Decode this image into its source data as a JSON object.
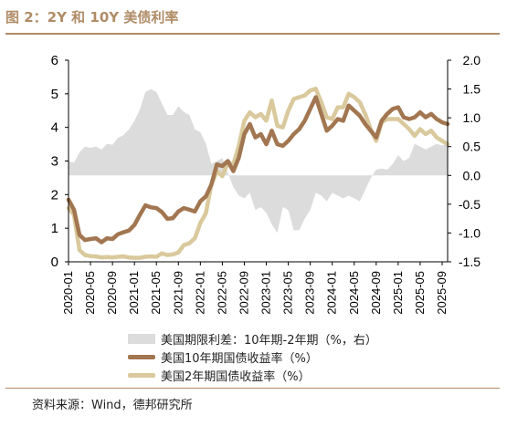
{
  "header": {
    "title": "图 2：2Y 和 10Y 美债利率"
  },
  "footer": {
    "source": "资料来源：Wind，德邦研究所"
  },
  "colors": {
    "accent": "#b08c67",
    "spread": "#dcdcdc",
    "y10": "#a27650",
    "y2": "#d9c99c"
  },
  "chart_data": {
    "type": "line",
    "title": "",
    "x_ticks": [
      "2020-01",
      "2020-05",
      "2020-09",
      "2021-01",
      "2021-05",
      "2021-09",
      "2022-01",
      "2022-05",
      "2022-09",
      "2023-01",
      "2023-05",
      "2023-09",
      "2024-01",
      "2024-05",
      "2024-09",
      "2025-01",
      "2025-05",
      "2025-09"
    ],
    "y_left": {
      "range": [
        0,
        6
      ],
      "ticks": [
        "0",
        "1",
        "2",
        "3",
        "4",
        "5",
        "6"
      ]
    },
    "y_right": {
      "range": [
        -1.5,
        2.0
      ],
      "ticks": [
        "-1.5",
        "-1.0",
        "-0.5",
        "0.0",
        "0.5",
        "1.0",
        "1.5",
        "2.0"
      ]
    },
    "legend_position": "bottom",
    "series": [
      {
        "name": "美国期限利差：10年期-2年期（%，右）",
        "kind": "area",
        "axis": "right",
        "points": [
          [
            "2020-01",
            0.25
          ],
          [
            "2020-02",
            0.22
          ],
          [
            "2020-03",
            0.4
          ],
          [
            "2020-04",
            0.5
          ],
          [
            "2020-05",
            0.48
          ],
          [
            "2020-06",
            0.5
          ],
          [
            "2020-07",
            0.45
          ],
          [
            "2020-08",
            0.55
          ],
          [
            "2020-09",
            0.53
          ],
          [
            "2020-10",
            0.65
          ],
          [
            "2020-11",
            0.7
          ],
          [
            "2020-12",
            0.8
          ],
          [
            "2021-01",
            0.95
          ],
          [
            "2021-02",
            1.15
          ],
          [
            "2021-03",
            1.45
          ],
          [
            "2021-04",
            1.5
          ],
          [
            "2021-05",
            1.45
          ],
          [
            "2021-06",
            1.25
          ],
          [
            "2021-07",
            1.05
          ],
          [
            "2021-08",
            1.05
          ],
          [
            "2021-09",
            1.2
          ],
          [
            "2021-10",
            1.1
          ],
          [
            "2021-11",
            1.05
          ],
          [
            "2021-12",
            0.8
          ],
          [
            "2022-01",
            0.75
          ],
          [
            "2022-02",
            0.55
          ],
          [
            "2022-03",
            0.2
          ],
          [
            "2022-04",
            0.25
          ],
          [
            "2022-05",
            0.3
          ],
          [
            "2022-06",
            0.05
          ],
          [
            "2022-07",
            -0.2
          ],
          [
            "2022-08",
            -0.35
          ],
          [
            "2022-09",
            -0.4
          ],
          [
            "2022-10",
            -0.3
          ],
          [
            "2022-11",
            -0.6
          ],
          [
            "2022-12",
            -0.55
          ],
          [
            "2023-01",
            -0.65
          ],
          [
            "2023-02",
            -0.85
          ],
          [
            "2023-03",
            -1.0
          ],
          [
            "2023-04",
            -0.55
          ],
          [
            "2023-05",
            -0.6
          ],
          [
            "2023-06",
            -0.95
          ],
          [
            "2023-07",
            -0.95
          ],
          [
            "2023-08",
            -0.75
          ],
          [
            "2023-09",
            -0.6
          ],
          [
            "2023-10",
            -0.3
          ],
          [
            "2023-11",
            -0.35
          ],
          [
            "2023-12",
            -0.45
          ],
          [
            "2024-01",
            -0.3
          ],
          [
            "2024-02",
            -0.35
          ],
          [
            "2024-03",
            -0.4
          ],
          [
            "2024-04",
            -0.35
          ],
          [
            "2024-05",
            -0.4
          ],
          [
            "2024-06",
            -0.45
          ],
          [
            "2024-07",
            -0.25
          ],
          [
            "2024-08",
            -0.05
          ],
          [
            "2024-09",
            0.1
          ],
          [
            "2024-10",
            0.12
          ],
          [
            "2024-11",
            0.1
          ],
          [
            "2024-12",
            0.2
          ],
          [
            "2025-01",
            0.35
          ],
          [
            "2025-02",
            0.25
          ],
          [
            "2025-03",
            0.3
          ],
          [
            "2025-04",
            0.55
          ],
          [
            "2025-05",
            0.5
          ],
          [
            "2025-06",
            0.45
          ],
          [
            "2025-07",
            0.5
          ],
          [
            "2025-08",
            0.55
          ],
          [
            "2025-09",
            0.52
          ],
          [
            "2025-10",
            0.55
          ]
        ]
      },
      {
        "name": "美国10年期国债收益率（%）",
        "kind": "line",
        "axis": "left",
        "points": [
          [
            "2020-01",
            1.85
          ],
          [
            "2020-02",
            1.55
          ],
          [
            "2020-03",
            0.8
          ],
          [
            "2020-04",
            0.65
          ],
          [
            "2020-05",
            0.68
          ],
          [
            "2020-06",
            0.7
          ],
          [
            "2020-07",
            0.58
          ],
          [
            "2020-08",
            0.7
          ],
          [
            "2020-09",
            0.68
          ],
          [
            "2020-10",
            0.82
          ],
          [
            "2020-11",
            0.88
          ],
          [
            "2020-12",
            0.93
          ],
          [
            "2021-01",
            1.1
          ],
          [
            "2021-02",
            1.4
          ],
          [
            "2021-03",
            1.68
          ],
          [
            "2021-04",
            1.62
          ],
          [
            "2021-05",
            1.6
          ],
          [
            "2021-06",
            1.48
          ],
          [
            "2021-07",
            1.28
          ],
          [
            "2021-08",
            1.3
          ],
          [
            "2021-09",
            1.5
          ],
          [
            "2021-10",
            1.6
          ],
          [
            "2021-11",
            1.55
          ],
          [
            "2021-12",
            1.5
          ],
          [
            "2022-01",
            1.8
          ],
          [
            "2022-02",
            1.95
          ],
          [
            "2022-03",
            2.3
          ],
          [
            "2022-04",
            2.9
          ],
          [
            "2022-05",
            2.85
          ],
          [
            "2022-06",
            3.0
          ],
          [
            "2022-07",
            2.7
          ],
          [
            "2022-08",
            3.1
          ],
          [
            "2022-09",
            3.8
          ],
          [
            "2022-10",
            4.1
          ],
          [
            "2022-11",
            3.7
          ],
          [
            "2022-12",
            3.8
          ],
          [
            "2023-01",
            3.5
          ],
          [
            "2023-02",
            3.9
          ],
          [
            "2023-03",
            3.5
          ],
          [
            "2023-04",
            3.45
          ],
          [
            "2023-05",
            3.6
          ],
          [
            "2023-06",
            3.8
          ],
          [
            "2023-07",
            3.95
          ],
          [
            "2023-08",
            4.2
          ],
          [
            "2023-09",
            4.55
          ],
          [
            "2023-10",
            4.9
          ],
          [
            "2023-11",
            4.4
          ],
          [
            "2023-12",
            3.9
          ],
          [
            "2024-01",
            4.05
          ],
          [
            "2024-02",
            4.25
          ],
          [
            "2024-03",
            4.2
          ],
          [
            "2024-04",
            4.65
          ],
          [
            "2024-05",
            4.5
          ],
          [
            "2024-06",
            4.35
          ],
          [
            "2024-07",
            4.1
          ],
          [
            "2024-08",
            3.9
          ],
          [
            "2024-09",
            3.7
          ],
          [
            "2024-10",
            4.2
          ],
          [
            "2024-11",
            4.4
          ],
          [
            "2024-12",
            4.55
          ],
          [
            "2025-01",
            4.6
          ],
          [
            "2025-02",
            4.3
          ],
          [
            "2025-03",
            4.25
          ],
          [
            "2025-04",
            4.3
          ],
          [
            "2025-05",
            4.45
          ],
          [
            "2025-06",
            4.3
          ],
          [
            "2025-07",
            4.4
          ],
          [
            "2025-08",
            4.25
          ],
          [
            "2025-09",
            4.15
          ],
          [
            "2025-10",
            4.1
          ]
        ]
      },
      {
        "name": "美国2年期国债收益率（%）",
        "kind": "line",
        "axis": "left",
        "points": [
          [
            "2020-01",
            1.6
          ],
          [
            "2020-02",
            1.4
          ],
          [
            "2020-03",
            0.35
          ],
          [
            "2020-04",
            0.2
          ],
          [
            "2020-05",
            0.17
          ],
          [
            "2020-06",
            0.16
          ],
          [
            "2020-07",
            0.13
          ],
          [
            "2020-08",
            0.14
          ],
          [
            "2020-09",
            0.13
          ],
          [
            "2020-10",
            0.15
          ],
          [
            "2020-11",
            0.16
          ],
          [
            "2020-12",
            0.13
          ],
          [
            "2021-01",
            0.12
          ],
          [
            "2021-02",
            0.12
          ],
          [
            "2021-03",
            0.15
          ],
          [
            "2021-04",
            0.16
          ],
          [
            "2021-05",
            0.15
          ],
          [
            "2021-06",
            0.25
          ],
          [
            "2021-07",
            0.2
          ],
          [
            "2021-08",
            0.22
          ],
          [
            "2021-09",
            0.28
          ],
          [
            "2021-10",
            0.5
          ],
          [
            "2021-11",
            0.55
          ],
          [
            "2021-12",
            0.7
          ],
          [
            "2022-01",
            1.15
          ],
          [
            "2022-02",
            1.45
          ],
          [
            "2022-03",
            2.3
          ],
          [
            "2022-04",
            2.7
          ],
          [
            "2022-05",
            2.55
          ],
          [
            "2022-06",
            2.95
          ],
          [
            "2022-07",
            2.9
          ],
          [
            "2022-08",
            3.45
          ],
          [
            "2022-09",
            4.2
          ],
          [
            "2022-10",
            4.45
          ],
          [
            "2022-11",
            4.3
          ],
          [
            "2022-12",
            4.4
          ],
          [
            "2023-01",
            4.2
          ],
          [
            "2023-02",
            4.8
          ],
          [
            "2023-03",
            4.05
          ],
          [
            "2023-04",
            4.0
          ],
          [
            "2023-05",
            4.5
          ],
          [
            "2023-06",
            4.85
          ],
          [
            "2023-07",
            4.9
          ],
          [
            "2023-08",
            4.95
          ],
          [
            "2023-09",
            5.1
          ],
          [
            "2023-10",
            5.15
          ],
          [
            "2023-11",
            4.75
          ],
          [
            "2023-12",
            4.3
          ],
          [
            "2024-01",
            4.25
          ],
          [
            "2024-02",
            4.6
          ],
          [
            "2024-03",
            4.6
          ],
          [
            "2024-04",
            5.0
          ],
          [
            "2024-05",
            4.9
          ],
          [
            "2024-06",
            4.75
          ],
          [
            "2024-07",
            4.4
          ],
          [
            "2024-08",
            3.95
          ],
          [
            "2024-09",
            3.6
          ],
          [
            "2024-10",
            4.15
          ],
          [
            "2024-11",
            4.25
          ],
          [
            "2024-12",
            4.25
          ],
          [
            "2025-01",
            4.25
          ],
          [
            "2025-02",
            4.1
          ],
          [
            "2025-03",
            3.95
          ],
          [
            "2025-04",
            3.75
          ],
          [
            "2025-05",
            3.95
          ],
          [
            "2025-06",
            3.8
          ],
          [
            "2025-07",
            3.9
          ],
          [
            "2025-08",
            3.7
          ],
          [
            "2025-09",
            3.6
          ],
          [
            "2025-10",
            3.5
          ]
        ]
      }
    ]
  }
}
